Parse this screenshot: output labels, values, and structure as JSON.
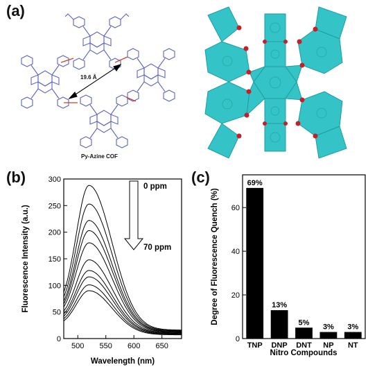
{
  "panels": {
    "a": {
      "label": "(a)",
      "distance_label": "19.6 Å",
      "structure_caption": "Py-Azine COF"
    },
    "b": {
      "label": "(b)"
    },
    "c": {
      "label": "(c)"
    }
  },
  "colors": {
    "structure_blue": "#5b63c9",
    "azine_red": "#d2402f",
    "cof_teal": "#34c3c6",
    "cof_oxygen_red": "#c3202a",
    "line": "#000000"
  },
  "chart_data": [
    {
      "type": "line",
      "ylabel": "Fluorescence Intensity (a.u.)",
      "xlabel": "Wavelength (nm)",
      "xlim": [
        475,
        685
      ],
      "ylim": [
        0,
        300
      ],
      "xticks": [
        500,
        550,
        600,
        650
      ],
      "yticks": [
        0,
        50,
        100,
        150,
        200,
        250,
        300
      ],
      "annotation_top": "0 ppm",
      "annotation_bottom": "70 ppm",
      "peak_x": 520,
      "series": [
        {
          "baseline_start": 55,
          "peak": 288,
          "baseline_end": 16
        },
        {
          "baseline_start": 50,
          "peak": 253,
          "baseline_end": 15
        },
        {
          "baseline_start": 46,
          "peak": 222,
          "baseline_end": 14
        },
        {
          "baseline_start": 43,
          "peak": 203,
          "baseline_end": 13
        },
        {
          "baseline_start": 40,
          "peak": 180,
          "baseline_end": 12
        },
        {
          "baseline_start": 36,
          "peak": 148,
          "baseline_end": 11
        },
        {
          "baseline_start": 33,
          "peak": 128,
          "baseline_end": 10
        },
        {
          "baseline_start": 30,
          "peak": 116,
          "baseline_end": 9
        },
        {
          "baseline_start": 27,
          "peak": 101,
          "baseline_end": 8
        },
        {
          "baseline_start": 24,
          "peak": 90,
          "baseline_end": 7
        }
      ]
    },
    {
      "type": "bar",
      "ylabel": "Degree of Fluorescence Quench (%)",
      "xlabel": "Nitro Compounds",
      "ylim": [
        0,
        75
      ],
      "yticks": [
        0,
        20,
        40,
        60
      ],
      "categories": [
        "TNP",
        "DNP",
        "DNT",
        "NP",
        "NT"
      ],
      "values": [
        69,
        13,
        5,
        3,
        3
      ],
      "value_labels": [
        "69%",
        "13%",
        "5%",
        "3%",
        "3%"
      ]
    }
  ]
}
